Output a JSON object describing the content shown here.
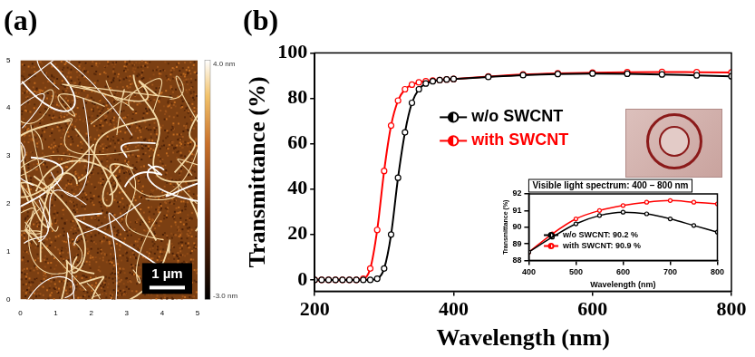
{
  "chart_data": [
    {
      "type": "image",
      "title": "(a)",
      "xlim": [
        0,
        5
      ],
      "xticks": [
        0,
        1,
        2,
        3,
        4,
        5
      ],
      "ylim": [
        0,
        5
      ],
      "yticks": [
        0,
        1,
        2,
        3,
        4,
        5
      ],
      "colorbar": {
        "range": [
          -3,
          4
        ],
        "ticks": [
          {
            "value": 4,
            "label": "4.0 nm"
          },
          {
            "value": -3,
            "label": "-3.0 nm"
          }
        ]
      },
      "scale_bar": {
        "value": 1,
        "label": "1 µm"
      }
    },
    {
      "type": "line",
      "title": "(b)",
      "x_label": "Wavelength (nm)",
      "y_label": "Transmittance (%)",
      "xlim": [
        200,
        800
      ],
      "xticks": [
        200,
        400,
        600,
        800
      ],
      "ylim": [
        -5,
        100
      ],
      "yticks": [
        0,
        20,
        40,
        60,
        80,
        100
      ],
      "legend": "center",
      "marker": "circle",
      "x": [
        200,
        210,
        220,
        230,
        240,
        250,
        260,
        270,
        280,
        290,
        300,
        310,
        320,
        330,
        340,
        350,
        360,
        370,
        380,
        390,
        400,
        450,
        500,
        550,
        600,
        650,
        700,
        750,
        800
      ],
      "series": [
        {
          "name": "w/o SWCNT",
          "color": "#000000",
          "values": [
            0,
            0,
            0,
            0,
            0,
            0,
            0,
            0,
            0,
            0.5,
            5,
            20,
            45,
            65,
            78,
            84,
            86.5,
            87.5,
            88,
            88.3,
            88.5,
            89.4,
            90.2,
            90.7,
            90.9,
            90.8,
            90.5,
            90.1,
            89.7
          ]
        },
        {
          "name": "with SWCNT",
          "color": "#ff0000",
          "values": [
            0,
            0,
            0,
            0,
            0,
            0,
            0,
            0.5,
            5,
            22,
            48,
            68,
            79,
            84,
            86,
            87,
            87.5,
            87.8,
            88,
            88.3,
            88.5,
            89.6,
            90.5,
            91.0,
            91.3,
            91.5,
            91.6,
            91.5,
            91.4
          ]
        }
      ]
    },
    {
      "type": "line",
      "title": "Visible light spectrum: 400 – 800 nm",
      "x_label": "Wavelength (nm)",
      "y_label": "Transmittance (%)",
      "xlim": [
        400,
        800
      ],
      "xticks": [
        400,
        500,
        600,
        700,
        800
      ],
      "ylim": [
        88,
        92
      ],
      "yticks": [
        88,
        89,
        90,
        91,
        92
      ],
      "legend": "bottom",
      "marker": "circle",
      "x": [
        400,
        450,
        500,
        550,
        600,
        650,
        700,
        750,
        800
      ],
      "series": [
        {
          "name": "w/o SWCNT: 90.2 %",
          "color": "#000000",
          "values": [
            88.5,
            89.4,
            90.2,
            90.7,
            90.9,
            90.8,
            90.5,
            90.1,
            89.7
          ]
        },
        {
          "name": "with SWCNT: 90.9 %",
          "color": "#ff0000",
          "values": [
            88.5,
            89.6,
            90.5,
            91.0,
            91.3,
            91.5,
            91.6,
            91.5,
            91.4
          ]
        }
      ]
    }
  ]
}
